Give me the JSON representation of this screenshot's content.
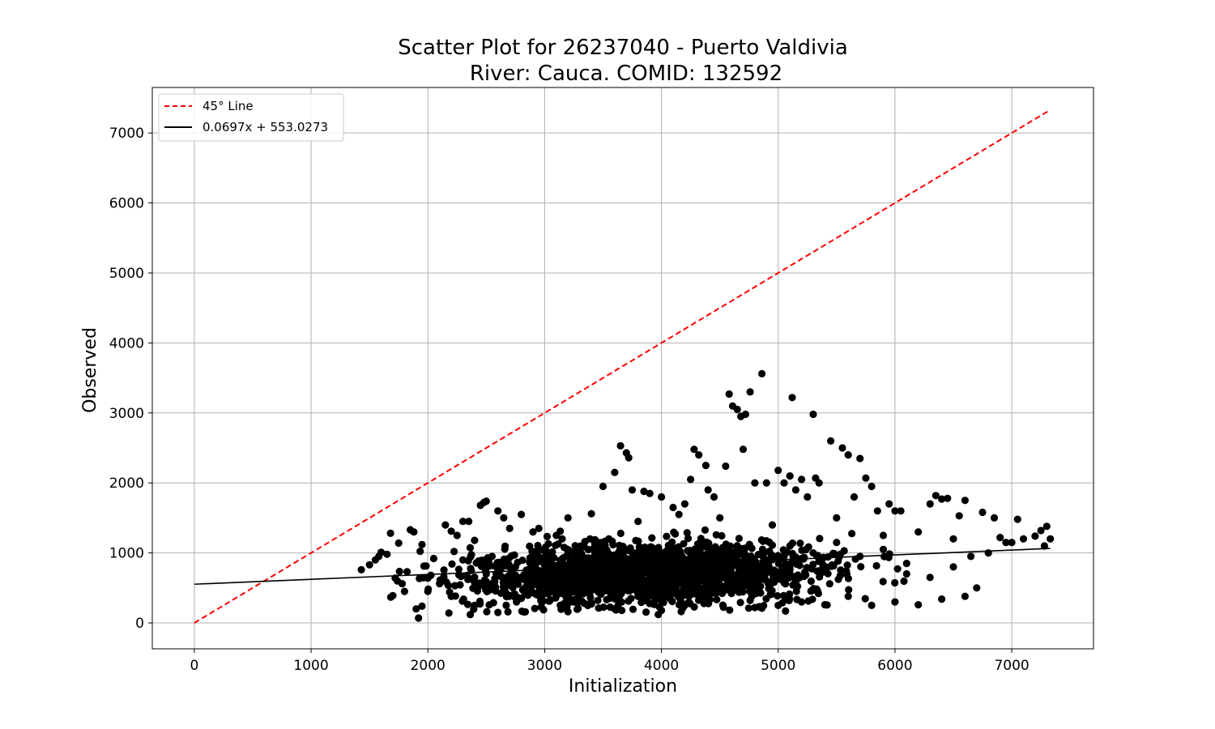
{
  "chart_data": {
    "type": "scatter",
    "title_line1": "Scatter Plot for 26237040 - Puerto Valdivia",
    "title_line2": "River: Cauca. COMID: 132592",
    "xlabel": "Initialization",
    "ylabel": "Observed",
    "xlim": [
      -360,
      7700
    ],
    "ylim": [
      -370,
      7650
    ],
    "xticks": [
      0,
      1000,
      2000,
      3000,
      4000,
      5000,
      6000,
      7000
    ],
    "yticks": [
      0,
      1000,
      2000,
      3000,
      4000,
      5000,
      6000,
      7000
    ],
    "grid": true,
    "legend_position": "top-left",
    "legend": [
      {
        "label": "45° Line",
        "color": "#ff0000",
        "style": "dashed"
      },
      {
        "label": "0.0697x + 553.0273",
        "color": "#000000",
        "style": "solid"
      }
    ],
    "lines": [
      {
        "name": "45° Line",
        "x": [
          0,
          7330
        ],
        "y": [
          0,
          7330
        ],
        "color": "#ff0000",
        "dash": true
      },
      {
        "name": "0.0697x + 553.0273",
        "x": [
          0,
          7330
        ],
        "y": [
          553.03,
          1063.93
        ],
        "color": "#000000",
        "dash": false
      }
    ],
    "series": [
      {
        "color": "#000000",
        "points": [
          [
            1430,
            760
          ],
          [
            1500,
            830
          ],
          [
            1550,
            900
          ],
          [
            1580,
            950
          ],
          [
            1600,
            1010
          ],
          [
            1650,
            980
          ],
          [
            1680,
            1280
          ],
          [
            1700,
            390
          ],
          [
            1720,
            640
          ],
          [
            1750,
            1140
          ],
          [
            1780,
            560
          ],
          [
            1800,
            450
          ],
          [
            1850,
            1330
          ],
          [
            1880,
            1300
          ],
          [
            1900,
            200
          ],
          [
            1920,
            70
          ],
          [
            1950,
            1120
          ],
          [
            2000,
            640
          ],
          [
            2050,
            920
          ],
          [
            2100,
            560
          ],
          [
            2150,
            1400
          ],
          [
            2180,
            140
          ],
          [
            2200,
            1310
          ],
          [
            2250,
            1250
          ],
          [
            2300,
            1450
          ],
          [
            2350,
            1450
          ],
          [
            2400,
            1180
          ],
          [
            2450,
            1680
          ],
          [
            2480,
            1720
          ],
          [
            2500,
            1740
          ],
          [
            2550,
            950
          ],
          [
            2600,
            1600
          ],
          [
            2650,
            1500
          ],
          [
            2700,
            1350
          ],
          [
            2750,
            800
          ],
          [
            2800,
            1550
          ],
          [
            2850,
            680
          ],
          [
            2900,
            1300
          ],
          [
            2950,
            1350
          ],
          [
            3000,
            1050
          ],
          [
            3050,
            900
          ],
          [
            3100,
            1250
          ],
          [
            3150,
            1200
          ],
          [
            3200,
            1500
          ],
          [
            3250,
            300
          ],
          [
            3300,
            750
          ],
          [
            3350,
            600
          ],
          [
            3400,
            1560
          ],
          [
            3450,
            800
          ],
          [
            3500,
            1950
          ],
          [
            3550,
            1200
          ],
          [
            3600,
            2150
          ],
          [
            3650,
            2530
          ],
          [
            3700,
            2430
          ],
          [
            3720,
            2360
          ],
          [
            3750,
            1900
          ],
          [
            3800,
            1450
          ],
          [
            3850,
            1880
          ],
          [
            3900,
            1850
          ],
          [
            3950,
            600
          ],
          [
            4000,
            1800
          ],
          [
            4050,
            900
          ],
          [
            4100,
            1650
          ],
          [
            4150,
            1550
          ],
          [
            4200,
            1700
          ],
          [
            4250,
            2050
          ],
          [
            4280,
            2480
          ],
          [
            4320,
            2400
          ],
          [
            4380,
            2250
          ],
          [
            4400,
            1900
          ],
          [
            4450,
            1800
          ],
          [
            4500,
            1500
          ],
          [
            4550,
            2240
          ],
          [
            4580,
            3270
          ],
          [
            4610,
            3100
          ],
          [
            4650,
            3050
          ],
          [
            4680,
            2950
          ],
          [
            4700,
            2480
          ],
          [
            4720,
            2980
          ],
          [
            4760,
            3300
          ],
          [
            4800,
            2000
          ],
          [
            4860,
            3560
          ],
          [
            4900,
            2000
          ],
          [
            4950,
            1400
          ],
          [
            5000,
            2180
          ],
          [
            5050,
            2000
          ],
          [
            5100,
            2100
          ],
          [
            5120,
            3220
          ],
          [
            5150,
            1900
          ],
          [
            5200,
            2050
          ],
          [
            5250,
            1800
          ],
          [
            5300,
            2980
          ],
          [
            5320,
            2070
          ],
          [
            5350,
            2000
          ],
          [
            5450,
            2600
          ],
          [
            5500,
            1500
          ],
          [
            5550,
            2500
          ],
          [
            5600,
            2400
          ],
          [
            5650,
            1800
          ],
          [
            5700,
            2350
          ],
          [
            5750,
            2070
          ],
          [
            5800,
            1950
          ],
          [
            5850,
            1600
          ],
          [
            5900,
            1250
          ],
          [
            5950,
            1700
          ],
          [
            6000,
            1600
          ],
          [
            6050,
            1600
          ],
          [
            6100,
            850
          ],
          [
            6200,
            1300
          ],
          [
            6300,
            1700
          ],
          [
            6350,
            1820
          ],
          [
            6400,
            1770
          ],
          [
            6450,
            1780
          ],
          [
            6500,
            1200
          ],
          [
            6550,
            1530
          ],
          [
            6600,
            1750
          ],
          [
            6650,
            950
          ],
          [
            6700,
            500
          ],
          [
            6750,
            1580
          ],
          [
            6800,
            1000
          ],
          [
            6850,
            1500
          ],
          [
            6900,
            1220
          ],
          [
            6950,
            1150
          ],
          [
            7000,
            1150
          ],
          [
            7050,
            1480
          ],
          [
            7100,
            1200
          ],
          [
            7200,
            1240
          ],
          [
            7250,
            1320
          ],
          [
            7280,
            1100
          ],
          [
            7300,
            1380
          ],
          [
            7330,
            1200
          ],
          [
            2000,
            450
          ],
          [
            2200,
            380
          ],
          [
            2400,
            250
          ],
          [
            2600,
            150
          ],
          [
            2800,
            350
          ],
          [
            3000,
            420
          ],
          [
            3200,
            160
          ],
          [
            3400,
            280
          ],
          [
            3600,
            200
          ],
          [
            3800,
            380
          ],
          [
            4000,
            180
          ],
          [
            4200,
            250
          ],
          [
            4400,
            320
          ],
          [
            4600,
            450
          ],
          [
            4800,
            220
          ],
          [
            5000,
            250
          ],
          [
            5200,
            300
          ],
          [
            5400,
            260
          ],
          [
            5600,
            380
          ],
          [
            5800,
            250
          ],
          [
            6000,
            300
          ],
          [
            6200,
            260
          ],
          [
            6400,
            340
          ],
          [
            6600,
            380
          ],
          [
            2300,
            900
          ],
          [
            2500,
            700
          ],
          [
            2700,
            620
          ],
          [
            2900,
            880
          ],
          [
            3100,
            760
          ],
          [
            3300,
            820
          ],
          [
            3500,
            700
          ],
          [
            3700,
            900
          ],
          [
            3900,
            760
          ],
          [
            4100,
            1000
          ],
          [
            4300,
            800
          ],
          [
            4500,
            950
          ],
          [
            4700,
            1050
          ],
          [
            4900,
            900
          ],
          [
            5100,
            1100
          ],
          [
            5300,
            1000
          ],
          [
            5500,
            1150
          ],
          [
            5700,
            950
          ],
          [
            5900,
            1050
          ],
          [
            6100,
            700
          ],
          [
            6300,
            650
          ],
          [
            6500,
            800
          ]
        ]
      }
    ],
    "cloud": {
      "count": 1900,
      "x_center": 3900,
      "x_spread": 1050,
      "x_range": [
        1650,
        6750
      ],
      "y_center": 700,
      "y_spread": 300,
      "y_range": [
        120,
        1550
      ]
    }
  }
}
